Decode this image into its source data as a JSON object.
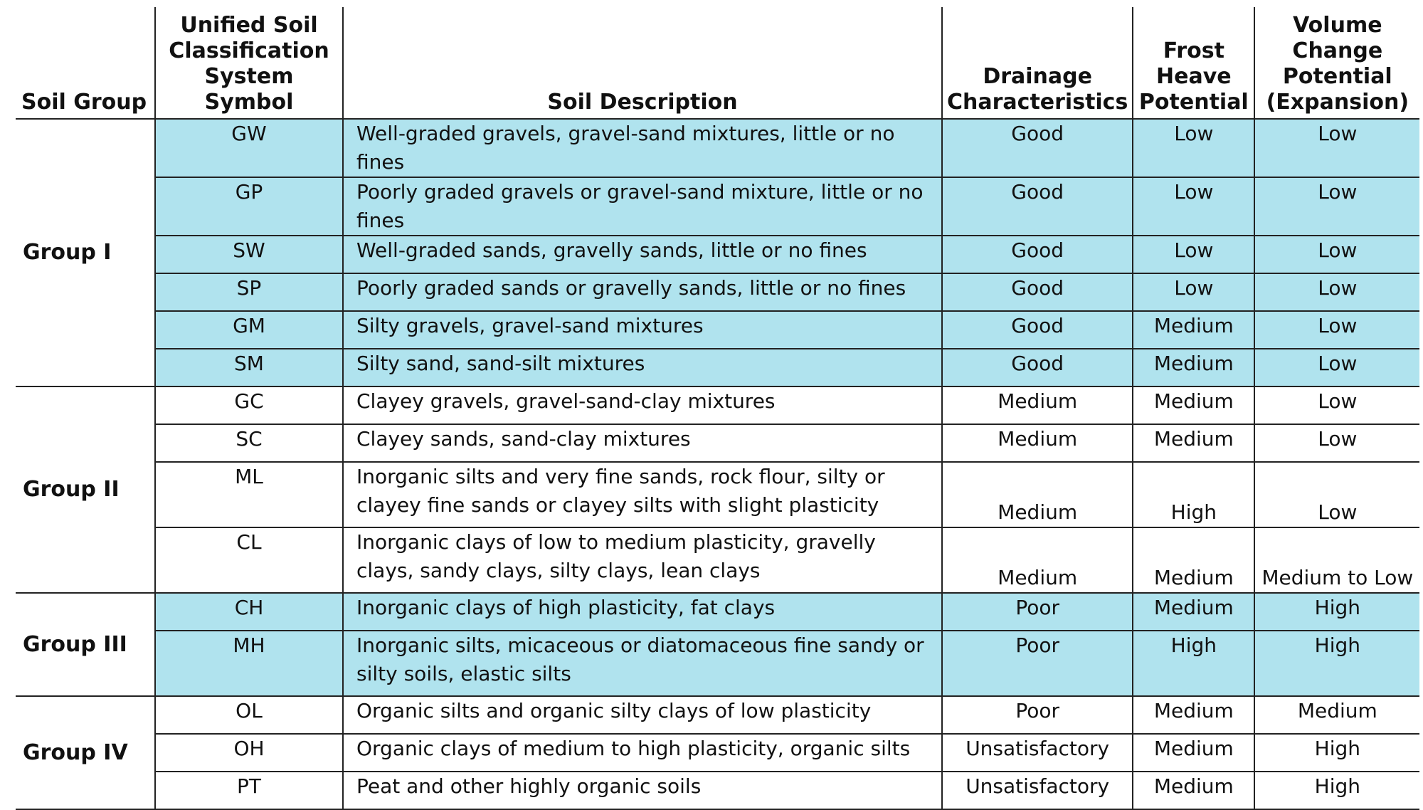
{
  "headers": {
    "soil_group": "Soil Group",
    "uscs_symbol": "Unified Soil Classification System Symbol",
    "description": "Soil Description",
    "drainage": "Drainage Characteristics",
    "frost": "Frost Heave Potential",
    "volume": "Volume Change Potential (Expansion)"
  },
  "groups": [
    {
      "name": "Group I",
      "shaded": true,
      "rows": [
        {
          "symbol": "GW",
          "description": "Well-graded gravels, gravel-sand mixtures, little or no fines",
          "drainage": "Good",
          "frost": "Low",
          "volume": "Low"
        },
        {
          "symbol": "GP",
          "description": "Poorly graded gravels or gravel-sand mixture, little or no fines",
          "drainage": "Good",
          "frost": "Low",
          "volume": "Low"
        },
        {
          "symbol": "SW",
          "description": "Well-graded sands, gravelly sands, little or no fines",
          "drainage": "Good",
          "frost": "Low",
          "volume": "Low"
        },
        {
          "symbol": "SP",
          "description": "Poorly graded sands or gravelly sands, little or no fines",
          "drainage": "Good",
          "frost": "Low",
          "volume": "Low"
        },
        {
          "symbol": "GM",
          "description": "Silty gravels, gravel-sand mixtures",
          "drainage": "Good",
          "frost": "Medium",
          "volume": "Low"
        },
        {
          "symbol": "SM",
          "description": "Silty sand, sand-silt mixtures",
          "drainage": "Good",
          "frost": "Medium",
          "volume": "Low"
        }
      ]
    },
    {
      "name": "Group II",
      "shaded": false,
      "rows": [
        {
          "symbol": "GC",
          "description": "Clayey gravels, gravel-sand-clay mixtures",
          "drainage": "Medium",
          "frost": "Medium",
          "volume": "Low"
        },
        {
          "symbol": "SC",
          "description": "Clayey sands, sand-clay mixtures",
          "drainage": "Medium",
          "frost": "Medium",
          "volume": "Low"
        },
        {
          "symbol": "ML",
          "description": "Inorganic silts and very fine sands, rock flour, silty or clayey fine sands or clayey silts with slight plasticity",
          "drainage": "Medium",
          "frost": "High",
          "volume": "Low"
        },
        {
          "symbol": "CL",
          "description": "Inorganic clays of low to medium plasticity, gravelly clays, sandy clays, silty clays, lean clays",
          "drainage": "Medium",
          "frost": "Medium",
          "volume": "Medium to Low"
        }
      ]
    },
    {
      "name": "Group III",
      "shaded": true,
      "rows": [
        {
          "symbol": "CH",
          "description": "Inorganic clays of high plasticity, fat clays",
          "drainage": "Poor",
          "frost": "Medium",
          "volume": "High"
        },
        {
          "symbol": "MH",
          "description": "Inorganic silts, micaceous or diatomaceous fine sandy or silty soils, elastic silts",
          "drainage": "Poor",
          "frost": "High",
          "volume": "High"
        }
      ]
    },
    {
      "name": "Group IV",
      "shaded": false,
      "rows": [
        {
          "symbol": "OL",
          "description": "Organic silts and organic silty clays of low plasticity",
          "drainage": "Poor",
          "frost": "Medium",
          "volume": "Medium"
        },
        {
          "symbol": "OH",
          "description": "Organic clays of medium to high plasticity, organic silts",
          "drainage": "Unsatisfactory",
          "frost": "Medium",
          "volume": "High"
        },
        {
          "symbol": "PT",
          "description": "Peat and other highly organic soils",
          "drainage": "Unsatisfactory",
          "frost": "Medium",
          "volume": "High"
        }
      ]
    }
  ]
}
